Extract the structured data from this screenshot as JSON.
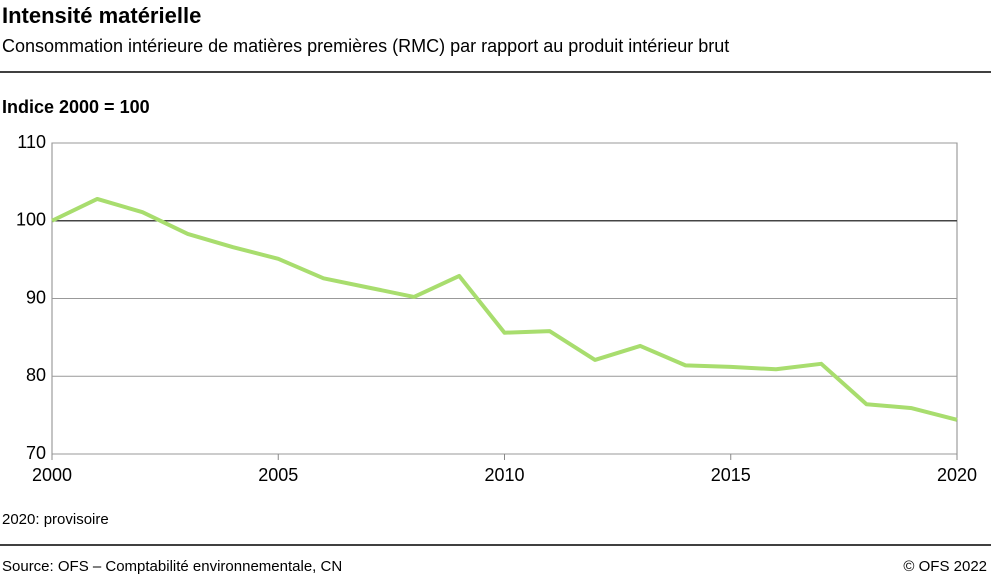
{
  "chart_data": {
    "type": "line",
    "title": "Intensité matérielle",
    "subtitle": "Consommation intérieure de matières premières (RMC) par rapport au produit intérieur brut",
    "y_label": "Indice 2000 = 100",
    "note": "2020: provisoire",
    "source": "Source: OFS – Comptabilité environnementale, CN",
    "copyright": "© OFS 2022",
    "x": [
      2000,
      2001,
      2002,
      2003,
      2004,
      2005,
      2006,
      2007,
      2008,
      2009,
      2010,
      2011,
      2012,
      2013,
      2014,
      2015,
      2016,
      2017,
      2018,
      2019,
      2020
    ],
    "values": [
      100,
      102.8,
      101.1,
      98.3,
      96.6,
      95.1,
      92.6,
      91.4,
      90.2,
      92.9,
      85.6,
      85.8,
      82.1,
      83.9,
      81.4,
      81.2,
      80.9,
      81.6,
      76.4,
      75.9,
      74.4
    ],
    "color": "#a8dd6e",
    "xlim": [
      2000,
      2020
    ],
    "xticks": [
      2000,
      2005,
      2010,
      2015,
      2020
    ],
    "ylim": [
      70,
      110
    ],
    "yticks": [
      70,
      80,
      90,
      100,
      110
    ],
    "baseline": 100,
    "grid": true
  }
}
